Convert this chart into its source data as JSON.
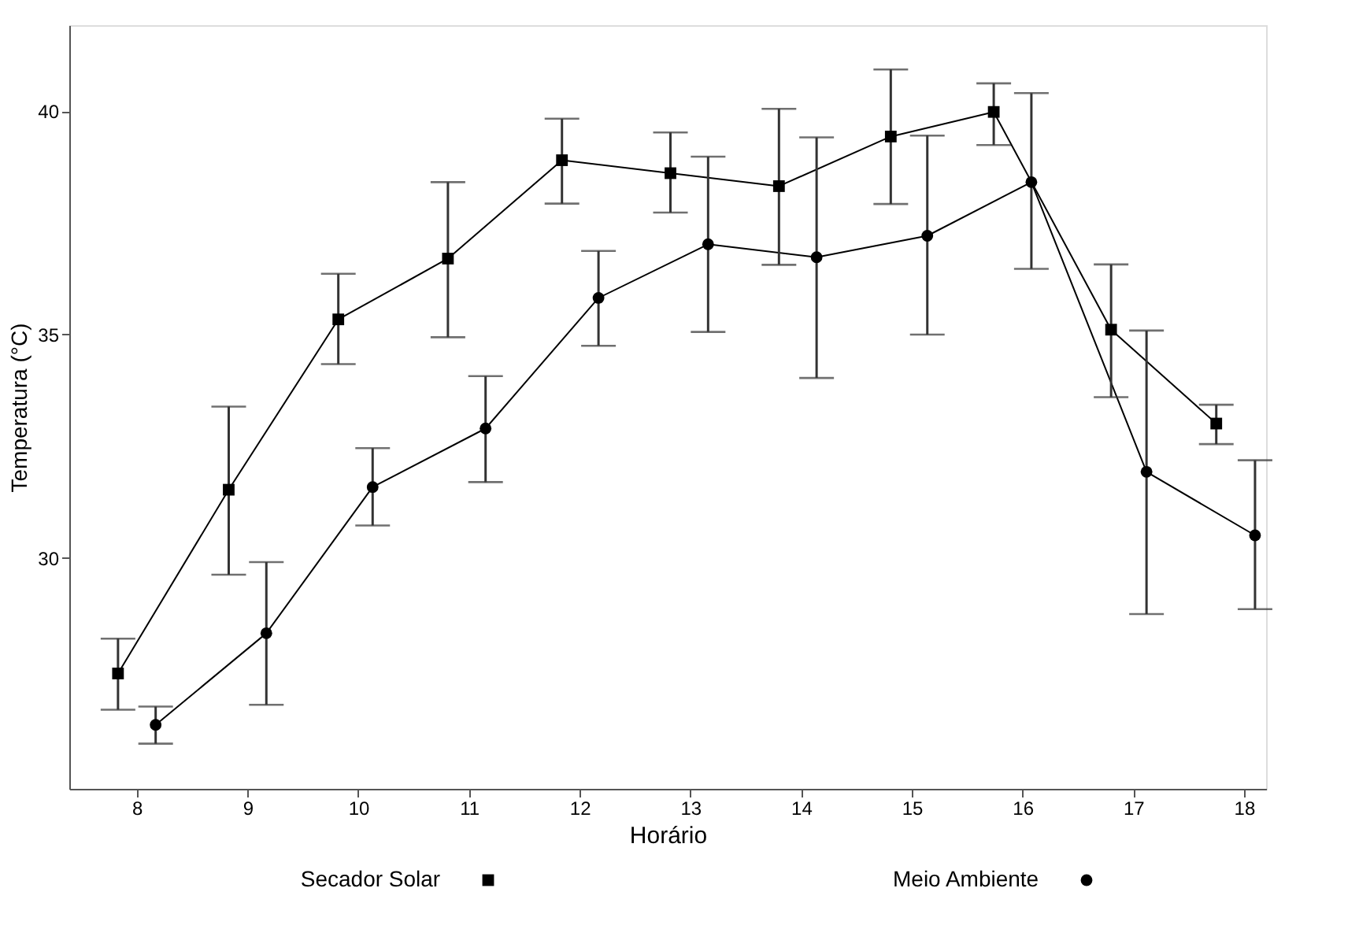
{
  "chart_data": {
    "type": "line",
    "xlabel": "Horário",
    "ylabel": "Temperatura (°C)",
    "xlim": [
      7.39,
      18.2
    ],
    "ylim": [
      24.84,
      41.92
    ],
    "xticks": [
      8,
      9,
      10,
      11,
      12,
      13,
      14,
      15,
      16,
      17,
      18
    ],
    "yticks": [
      30,
      35,
      40
    ],
    "grid": false,
    "legend": "bottom",
    "line_style": "solid",
    "series": [
      {
        "name": "Secador Solar",
        "color": "#000000",
        "marker": "square",
        "x": [
          7.83,
          8.83,
          9.82,
          10.81,
          11.84,
          12.82,
          13.8,
          14.81,
          15.74,
          16.8,
          17.75
        ],
        "values": [
          27.42,
          31.53,
          35.34,
          36.7,
          38.9,
          38.61,
          38.32,
          39.43,
          39.98,
          35.11,
          33.01
        ],
        "errors": [
          [
            26.61,
            28.2
          ],
          [
            29.63,
            33.39
          ],
          [
            34.34,
            36.36
          ],
          [
            34.94,
            38.41
          ],
          [
            37.93,
            39.83
          ],
          [
            37.73,
            39.52
          ],
          [
            36.56,
            40.05
          ],
          [
            37.92,
            40.93
          ],
          [
            39.24,
            40.62
          ],
          [
            33.6,
            36.57
          ],
          [
            32.55,
            33.43
          ]
        ]
      },
      {
        "name": "Meio Ambiente",
        "color": "#000000",
        "marker": "circle",
        "x": [
          8.17,
          9.17,
          10.13,
          11.15,
          12.17,
          13.16,
          14.14,
          15.14,
          16.08,
          17.12,
          18.1
        ],
        "values": [
          26.27,
          28.32,
          31.59,
          32.9,
          35.82,
          37.02,
          36.73,
          37.21,
          38.41,
          31.93,
          30.51
        ],
        "errors": [
          [
            25.85,
            26.68
          ],
          [
            26.72,
            29.91
          ],
          [
            30.73,
            32.46
          ],
          [
            31.7,
            34.07
          ],
          [
            34.75,
            36.87
          ],
          [
            35.06,
            38.98
          ],
          [
            34.03,
            39.41
          ],
          [
            35.0,
            39.45
          ],
          [
            36.47,
            40.4
          ],
          [
            28.75,
            35.09
          ],
          [
            28.86,
            32.19
          ]
        ]
      }
    ]
  }
}
